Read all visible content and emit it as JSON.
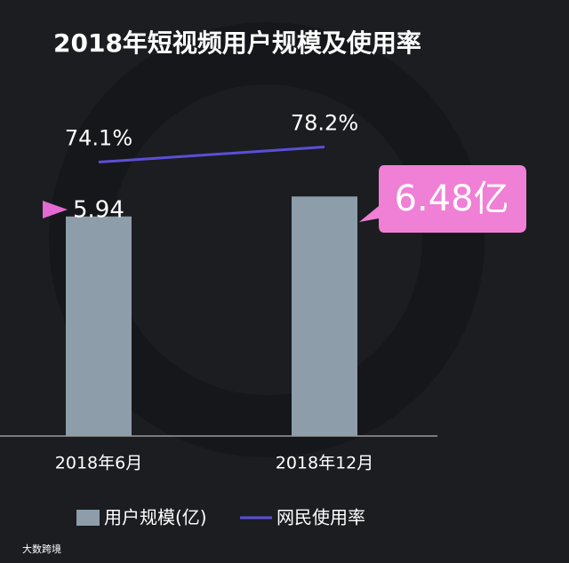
{
  "chart_data": {
    "type": "combo",
    "title": "2018年短视频用户规模及使用率",
    "categories": [
      "2018年6月",
      "2018年12月"
    ],
    "series": [
      {
        "name": "用户规模(亿)",
        "type": "bar",
        "color": "#8d9daa",
        "values": [
          5.94,
          6.48
        ],
        "value_labels": [
          "5.94",
          "6.48亿"
        ]
      },
      {
        "name": "网民使用率",
        "type": "line",
        "axis": "y2",
        "color": "#5b4fd6",
        "values": [
          74.1,
          78.2
        ],
        "value_labels": [
          "74.1%",
          "78.2%"
        ]
      }
    ],
    "ylim": [
      0,
      8
    ],
    "y2lim": [
      0,
      80
    ]
  },
  "watermark": "大数跨境"
}
